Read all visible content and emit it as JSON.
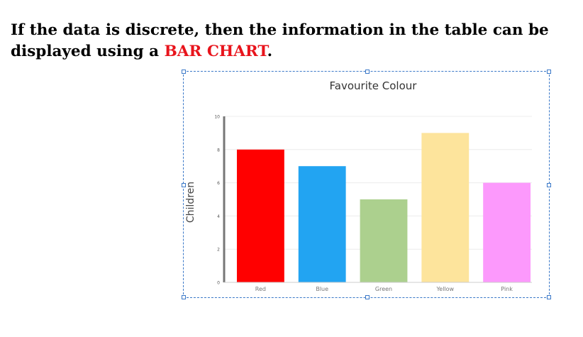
{
  "intro": {
    "line1": "If the data is discrete, then the information in the table can be",
    "line2_prefix": "displayed using a ",
    "line2_highlight": "BAR CHART",
    "line2_suffix": "."
  },
  "chart_data": {
    "type": "bar",
    "title": "Favourite Colour",
    "xlabel": "",
    "ylabel": "Children",
    "categories": [
      "Red",
      "Blue",
      "Green",
      "Yellow",
      "Pink"
    ],
    "values": [
      8,
      7,
      5,
      9,
      6
    ],
    "colors": [
      "#ff0000",
      "#22a4f2",
      "#acd08e",
      "#fde49c",
      "#fc99fc"
    ],
    "ylim": [
      0,
      10
    ],
    "yticks": [
      0,
      2,
      4,
      6,
      8,
      10
    ],
    "grid": true,
    "legend": "none"
  }
}
